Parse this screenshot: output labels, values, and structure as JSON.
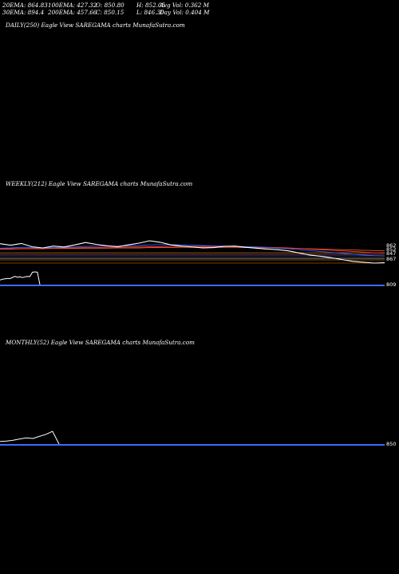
{
  "stats": {
    "row1": [
      "20EMA: 864.83",
      "100EMA: 427.32",
      "O: 850.80",
      "H: 852.05",
      "Avg Vol: 0.362  M"
    ],
    "row2": [
      "30EMA: 894.4",
      "200EMA: 457.66",
      "C: 850.15",
      "L: 846.30",
      "Day Vol: 0.404  M"
    ]
  },
  "panels": {
    "daily": "DAILY(250) Eagle   View   SAREGAMA charts MunafaSutra.com",
    "weekly": "WEEKLY(212) Eagle   View   SAREGAMA charts MunafaSutra.com",
    "monthly": "MONTHLY(52) Eagle   View   SAREGAMA charts MunafaSutra.com"
  },
  "chart_data": [
    {
      "type": "line",
      "panel": "weekly",
      "series": [
        {
          "color": "#ffffff",
          "values": [
            860,
            855,
            861,
            850,
            846,
            852,
            849,
            856,
            864,
            858,
            853,
            850,
            856,
            862,
            870,
            865,
            856,
            852,
            849,
            846,
            847,
            851,
            852,
            848,
            845,
            842,
            840,
            836,
            829,
            822,
            818,
            813,
            807,
            801,
            798,
            795,
            796
          ]
        },
        {
          "color": "#3366ff",
          "values": [
            845,
            846,
            848,
            847,
            846,
            847,
            848,
            849,
            851,
            852,
            852,
            852,
            853,
            854,
            856,
            857,
            857,
            856,
            855,
            854,
            853,
            852,
            851,
            850,
            849,
            847,
            845,
            843,
            840,
            837,
            834,
            831,
            828,
            825,
            822,
            820,
            819
          ]
        },
        {
          "color": "#ff3333",
          "values": [
            843,
            843,
            844,
            844,
            845,
            845,
            846,
            846,
            847,
            847,
            848,
            848,
            849,
            849,
            850,
            850,
            851,
            851,
            851,
            851,
            851,
            851,
            850,
            850,
            849,
            848,
            847,
            846,
            844,
            842,
            840,
            838,
            836,
            834,
            832,
            830,
            829
          ]
        },
        {
          "color": "#e06030",
          "values": [
            842,
            842,
            843,
            843,
            843,
            844,
            844,
            844,
            845,
            845,
            845,
            846,
            846,
            846,
            847,
            847,
            847,
            848,
            848,
            848,
            848,
            848,
            848,
            847,
            847,
            846,
            846,
            845,
            844,
            843,
            842,
            841,
            840,
            839,
            838,
            837,
            836
          ]
        }
      ],
      "right_labels": [
        "862",
        "852",
        "847",
        "867"
      ],
      "volume": [
        22,
        26,
        28,
        30,
        29,
        35,
        40,
        36,
        38,
        34,
        38,
        40,
        39,
        60,
        62,
        60,
        0
      ],
      "volume_end_label": "809"
    },
    {
      "type": "line",
      "panel": "monthly",
      "series": [
        {
          "color": "#ffffff",
          "values": [
            10,
            12,
            15,
            20,
            24,
            22,
            30,
            38,
            50,
            0
          ]
        }
      ],
      "volume_end_label": "850"
    }
  ]
}
